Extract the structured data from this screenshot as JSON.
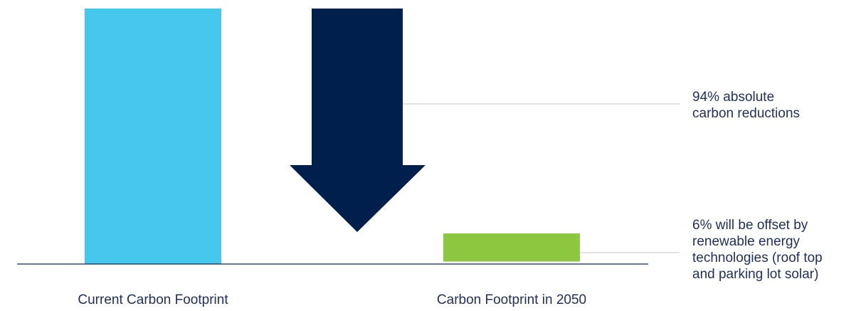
{
  "chart_data": {
    "type": "bar",
    "categories": [
      "Current Carbon Footprint",
      "Carbon Footprint in 2050"
    ],
    "values": [
      100,
      6
    ],
    "ylim": [
      0,
      100
    ],
    "grid": false,
    "annotations": [
      {
        "text": "94% absolute\ncarbon reductions",
        "value": 94
      },
      {
        "text": "6% will be offset by\nrenewable energy\ntechnologies (roof top\nand parking lot solar)",
        "value": 6
      }
    ]
  },
  "colors": {
    "current_bar": "#45c8ec",
    "future_bar": "#8dc63f",
    "reduction_arrow": "#001f4c",
    "baseline": "#0e2a56",
    "leader_line": "#c6c6c6",
    "text": "#1f2f57"
  }
}
